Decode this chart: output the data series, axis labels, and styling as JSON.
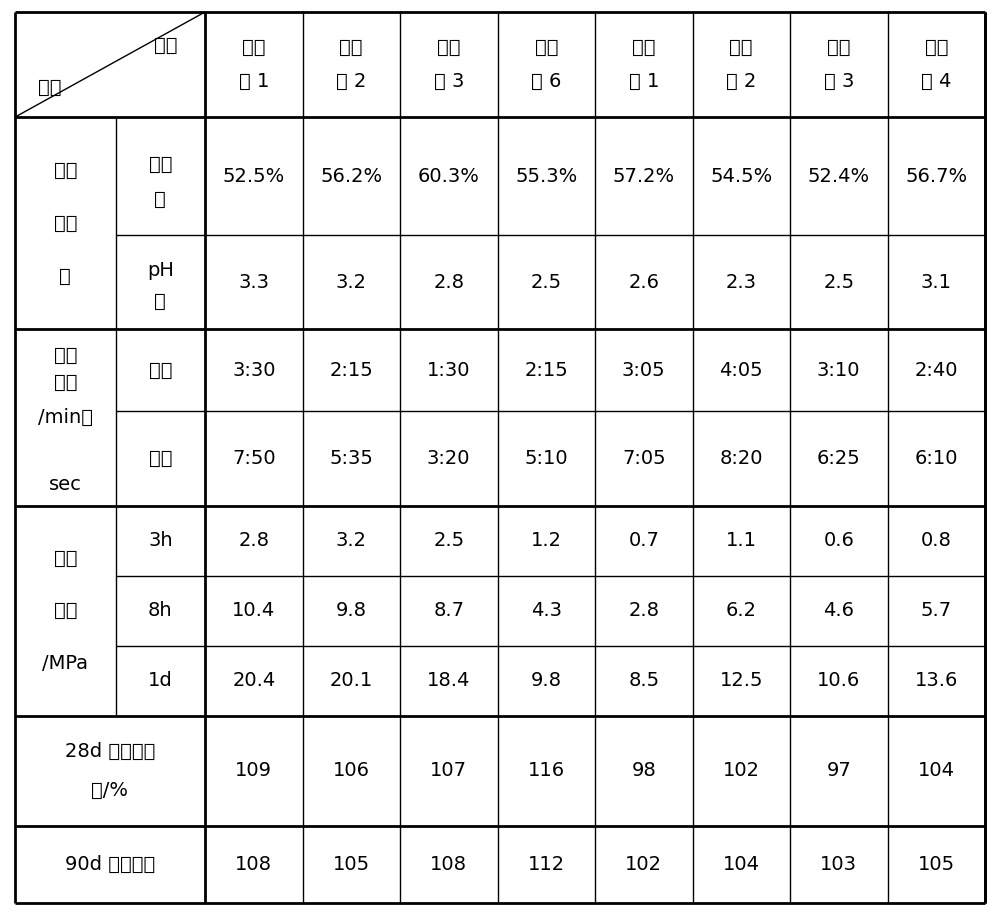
{
  "col_headers": [
    [
      "实施",
      "例 1"
    ],
    [
      "实施",
      "例 2"
    ],
    [
      "实施",
      "例 3"
    ],
    [
      "实施",
      "例 6"
    ],
    [
      "对比",
      "例 1"
    ],
    [
      "对比",
      "例 2"
    ],
    [
      "对比",
      "例 3"
    ],
    [
      "对比",
      "例 4"
    ]
  ],
  "header_top": "类别",
  "header_bottom": "项目",
  "group1_label": [
    "匀质",
    "性指",
    "标"
  ],
  "group1_sub1": [
    "固含",
    "量"
  ],
  "group1_sub1_vals": [
    "52.5%",
    "56.2%",
    "60.3%",
    "55.3%",
    "57.2%",
    "54.5%",
    "52.4%",
    "56.7%"
  ],
  "group1_sub2": [
    "pH",
    "值"
  ],
  "group1_sub2_vals": [
    "3.3",
    "3.2",
    "2.8",
    "2.5",
    "2.6",
    "2.3",
    "2.5",
    "3.1"
  ],
  "group2_label": [
    "凝结",
    "时间",
    "/min：",
    "",
    "sec"
  ],
  "group2_sub1": [
    "初凝"
  ],
  "group2_sub1_vals": [
    "3:30",
    "2:15",
    "1:30",
    "2:15",
    "3:05",
    "4:05",
    "3:10",
    "2:40"
  ],
  "group2_sub2": [
    "终凝"
  ],
  "group2_sub2_vals": [
    "7:50",
    "5:35",
    "3:20",
    "5:10",
    "7:05",
    "8:20",
    "6:25",
    "6:10"
  ],
  "group3_label": [
    "抗压",
    "强度",
    "/MPa"
  ],
  "group3_sub1": [
    "3h"
  ],
  "group3_sub1_vals": [
    "2.8",
    "3.2",
    "2.5",
    "1.2",
    "0.7",
    "1.1",
    "0.6",
    "0.8"
  ],
  "group3_sub2": [
    "8h"
  ],
  "group3_sub2_vals": [
    "10.4",
    "9.8",
    "8.7",
    "4.3",
    "2.8",
    "6.2",
    "4.6",
    "5.7"
  ],
  "group3_sub3": [
    "1d"
  ],
  "group3_sub3_vals": [
    "20.4",
    "20.1",
    "18.4",
    "9.8",
    "8.5",
    "12.5",
    "10.6",
    "13.6"
  ],
  "group4_label": [
    "28d 抗压强度",
    "比/%"
  ],
  "group4_vals": [
    "109",
    "106",
    "107",
    "116",
    "98",
    "102",
    "97",
    "104"
  ],
  "group5_label": [
    "90d 抗压强保"
  ],
  "group5_vals": [
    "108",
    "105",
    "108",
    "112",
    "102",
    "104",
    "103",
    "105"
  ],
  "bg_color": "#ffffff",
  "line_color": "#000000"
}
